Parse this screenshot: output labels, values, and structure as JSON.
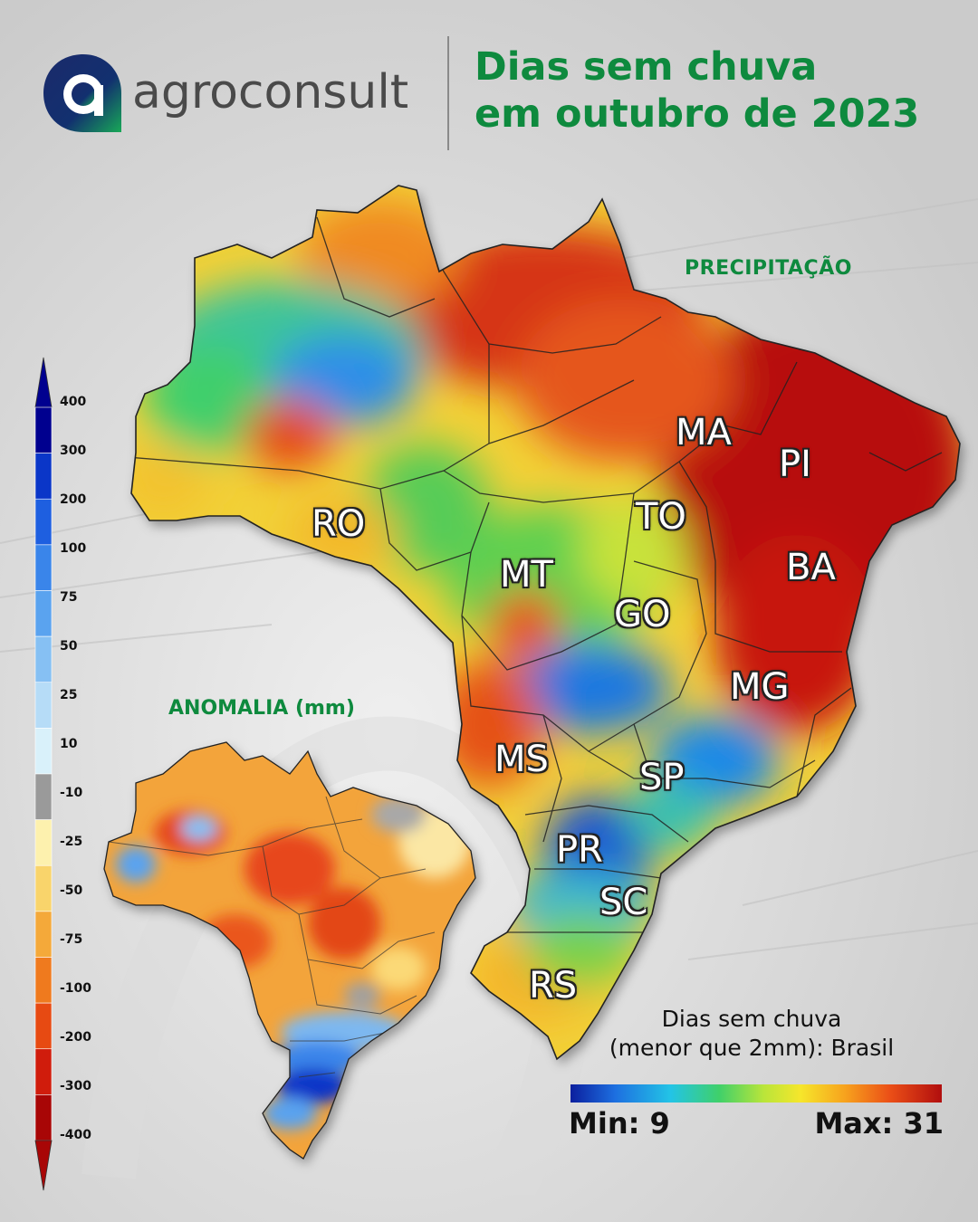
{
  "brand": {
    "name": "agroconsult",
    "logo_letter": "a"
  },
  "title": {
    "line1": "Dias sem chuva",
    "line2": "em outubro de 2023"
  },
  "main_map": {
    "section_label": "PRECIPITAÇÃO",
    "state_labels": [
      "MA",
      "PI",
      "TO",
      "RO",
      "BA",
      "MT",
      "GO",
      "MG",
      "MS",
      "SP",
      "PR",
      "SC",
      "RS"
    ]
  },
  "anomaly_map": {
    "title": "ANOMALIA (mm)"
  },
  "anomaly_legend": {
    "ticks": [
      "400",
      "300",
      "200",
      "100",
      "75",
      "50",
      "25",
      "10",
      "-10",
      "-25",
      "-50",
      "-75",
      "-100",
      "-200",
      "-300",
      "-400"
    ],
    "colors": [
      "#00008f",
      "#0a36c8",
      "#1e5fe0",
      "#3a85ea",
      "#5aa3ef",
      "#86c0f3",
      "#b6dcf7",
      "#d9f1fa",
      "#9a9a9a",
      "#fdf1ae",
      "#f9d46b",
      "#f4a93a",
      "#ef7a1e",
      "#e74a12",
      "#d01c0c",
      "#a80606"
    ]
  },
  "precip_colorbar": {
    "title_line1": "Dias sem chuva",
    "title_line2": "(menor que 2mm): Brasil",
    "min_label": "Min: 9",
    "max_label": "Max: 31",
    "min": 9,
    "max": 31
  },
  "colors": {
    "brand_green": "#0e8a3e",
    "logo_ring": "#1b2a6b",
    "logo_accent": "#18a957"
  }
}
